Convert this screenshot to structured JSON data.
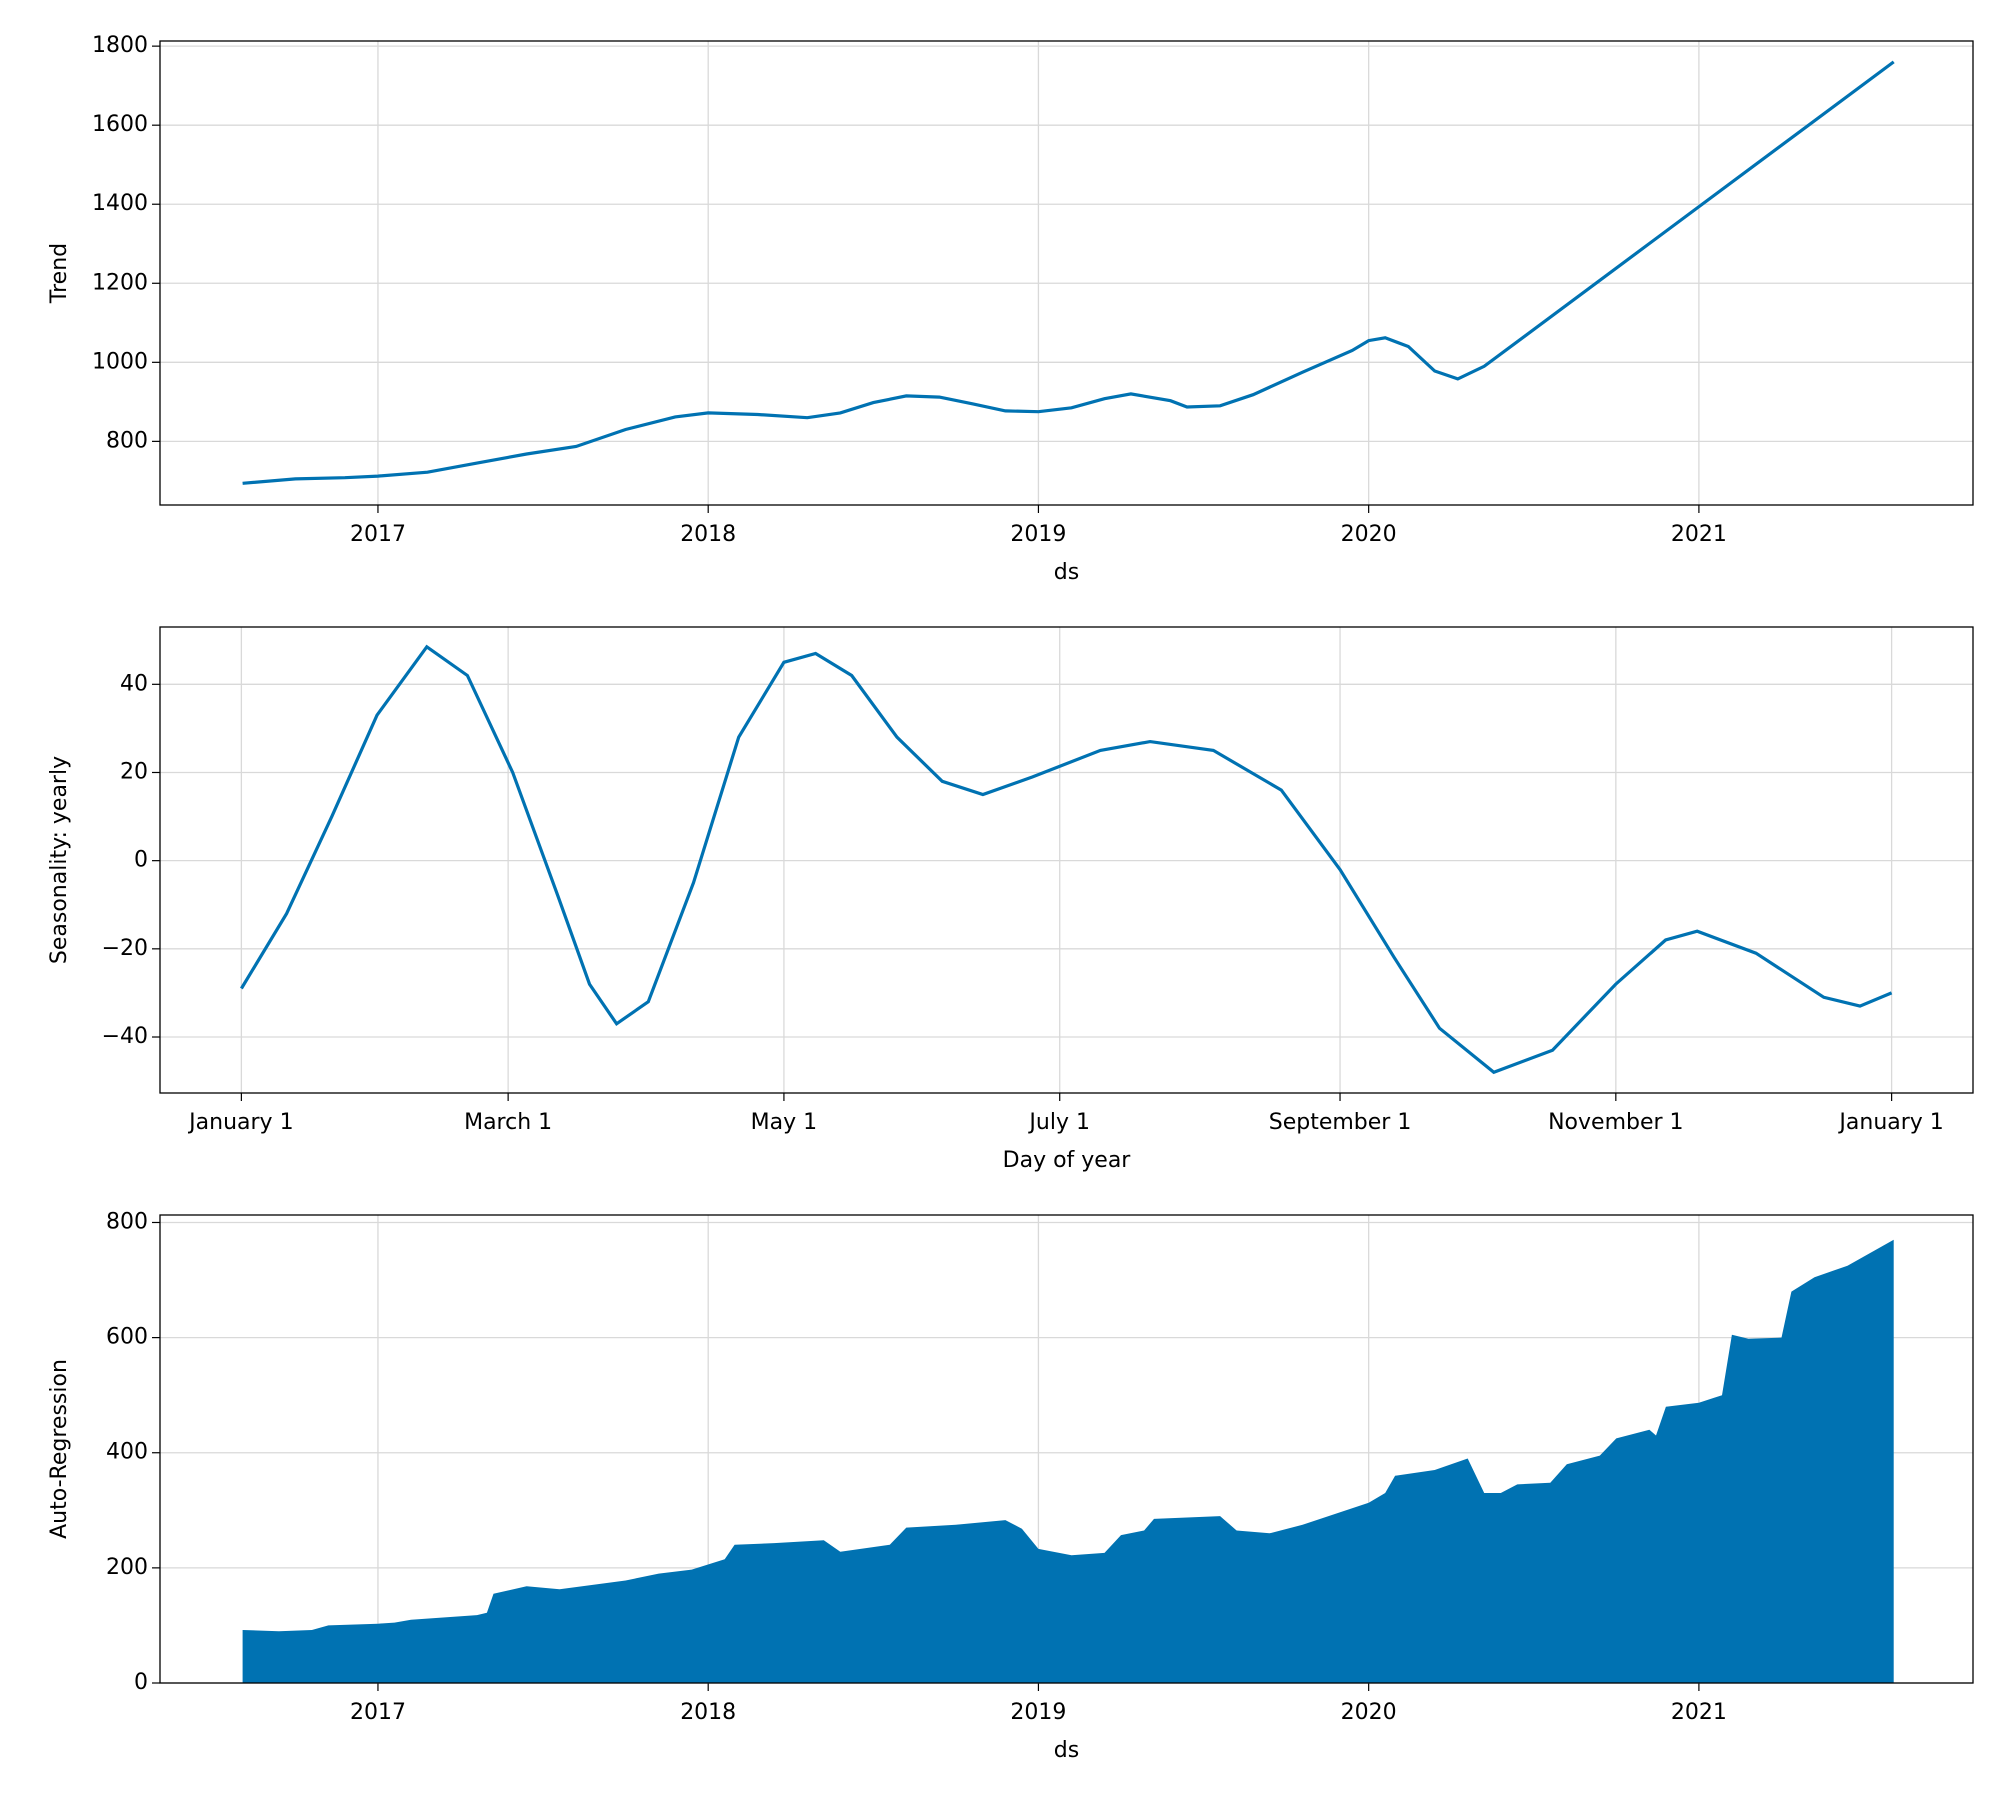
{
  "chart_data": [
    {
      "type": "line",
      "xlabel": "ds",
      "ylabel": "Trend",
      "color": "#0072b2",
      "grid": true,
      "x": [
        2016.59,
        2016.75,
        2016.9,
        2017.0,
        2017.15,
        2017.3,
        2017.45,
        2017.6,
        2017.75,
        2017.9,
        2018.0,
        2018.15,
        2018.3,
        2018.4,
        2018.5,
        2018.6,
        2018.7,
        2018.8,
        2018.9,
        2019.0,
        2019.1,
        2019.2,
        2019.28,
        2019.4,
        2019.45,
        2019.55,
        2019.65,
        2019.8,
        2019.95,
        2020.0,
        2020.05,
        2020.12,
        2020.2,
        2020.27,
        2020.35,
        2021.59
      ],
      "values": [
        694,
        705,
        708,
        712,
        722,
        745,
        768,
        787,
        830,
        862,
        872,
        868,
        860,
        872,
        898,
        915,
        912,
        895,
        877,
        875,
        885,
        908,
        920,
        903,
        887,
        890,
        918,
        975,
        1030,
        1055,
        1062,
        1040,
        978,
        958,
        990,
        1760
      ],
      "xlim": [
        2016.34,
        2021.83
      ],
      "xticks": [
        2017,
        2018,
        2019,
        2020,
        2021
      ],
      "ylim": [
        639,
        1813
      ],
      "yticks": [
        800,
        1000,
        1200,
        1400,
        1600,
        1800
      ]
    },
    {
      "type": "line",
      "xlabel": "Day of year",
      "ylabel": "Seasonality: yearly",
      "color": "#0072b2",
      "grid": true,
      "x": [
        0,
        10,
        20,
        30,
        41,
        50,
        60,
        70,
        77,
        83,
        90,
        100,
        110,
        120,
        127,
        135,
        145,
        155,
        164,
        175,
        190,
        201,
        215,
        230,
        243,
        255,
        265,
        277,
        290,
        304,
        315,
        322,
        335,
        350,
        358,
        365
      ],
      "values": [
        -29,
        -12,
        10,
        33,
        48.5,
        42,
        20,
        -8,
        -28,
        -37,
        -32,
        -5,
        28,
        45,
        47,
        42,
        28,
        18,
        15,
        19,
        25,
        27,
        25,
        16,
        -2,
        -22,
        -38,
        -48,
        -43,
        -28,
        -18,
        -16,
        -21,
        -31,
        -33,
        -30
      ],
      "xlim": [
        -18,
        383
      ],
      "xticks": [
        {
          "value": 0,
          "label": "January 1"
        },
        {
          "value": 59,
          "label": "March 1"
        },
        {
          "value": 120,
          "label": "May 1"
        },
        {
          "value": 181,
          "label": "July 1"
        },
        {
          "value": 243,
          "label": "September 1"
        },
        {
          "value": 304,
          "label": "November 1"
        },
        {
          "value": 365,
          "label": "January 1"
        }
      ],
      "ylim": [
        -52.7,
        53
      ],
      "yticks": [
        {
          "value": -40,
          "label": "−40"
        },
        {
          "value": -20,
          "label": "−20"
        },
        0,
        20,
        40
      ]
    },
    {
      "type": "area",
      "xlabel": "ds",
      "ylabel": "Auto-Regression",
      "color": "#0072b2",
      "grid": true,
      "x": [
        2016.59,
        2016.7,
        2016.8,
        2016.85,
        2017.0,
        2017.05,
        2017.1,
        2017.3,
        2017.33,
        2017.35,
        2017.45,
        2017.55,
        2017.75,
        2017.85,
        2017.95,
        2018.05,
        2018.08,
        2018.2,
        2018.35,
        2018.4,
        2018.55,
        2018.6,
        2018.75,
        2018.9,
        2018.95,
        2019.0,
        2019.1,
        2019.2,
        2019.25,
        2019.32,
        2019.35,
        2019.55,
        2019.6,
        2019.7,
        2019.8,
        2020.0,
        2020.05,
        2020.08,
        2020.2,
        2020.3,
        2020.35,
        2020.4,
        2020.45,
        2020.55,
        2020.6,
        2020.7,
        2020.75,
        2020.85,
        2020.87,
        2020.9,
        2021.0,
        2021.07,
        2021.1,
        2021.15,
        2021.25,
        2021.28,
        2021.35,
        2021.45,
        2021.59
      ],
      "values": [
        92,
        90,
        92,
        100,
        103,
        105,
        110,
        118,
        122,
        155,
        168,
        163,
        178,
        190,
        197,
        215,
        240,
        243,
        248,
        228,
        240,
        270,
        275,
        283,
        268,
        233,
        222,
        226,
        257,
        265,
        285,
        290,
        265,
        260,
        275,
        313,
        330,
        360,
        370,
        390,
        330,
        330,
        345,
        348,
        380,
        395,
        425,
        440,
        430,
        480,
        487,
        500,
        605,
        598,
        600,
        680,
        705,
        725,
        770
      ],
      "xlim": [
        2016.34,
        2021.83
      ],
      "xticks": [
        2017,
        2018,
        2019,
        2020,
        2021
      ],
      "ylim": [
        0,
        813
      ],
      "yticks": [
        0,
        200,
        400,
        600,
        800
      ]
    }
  ]
}
